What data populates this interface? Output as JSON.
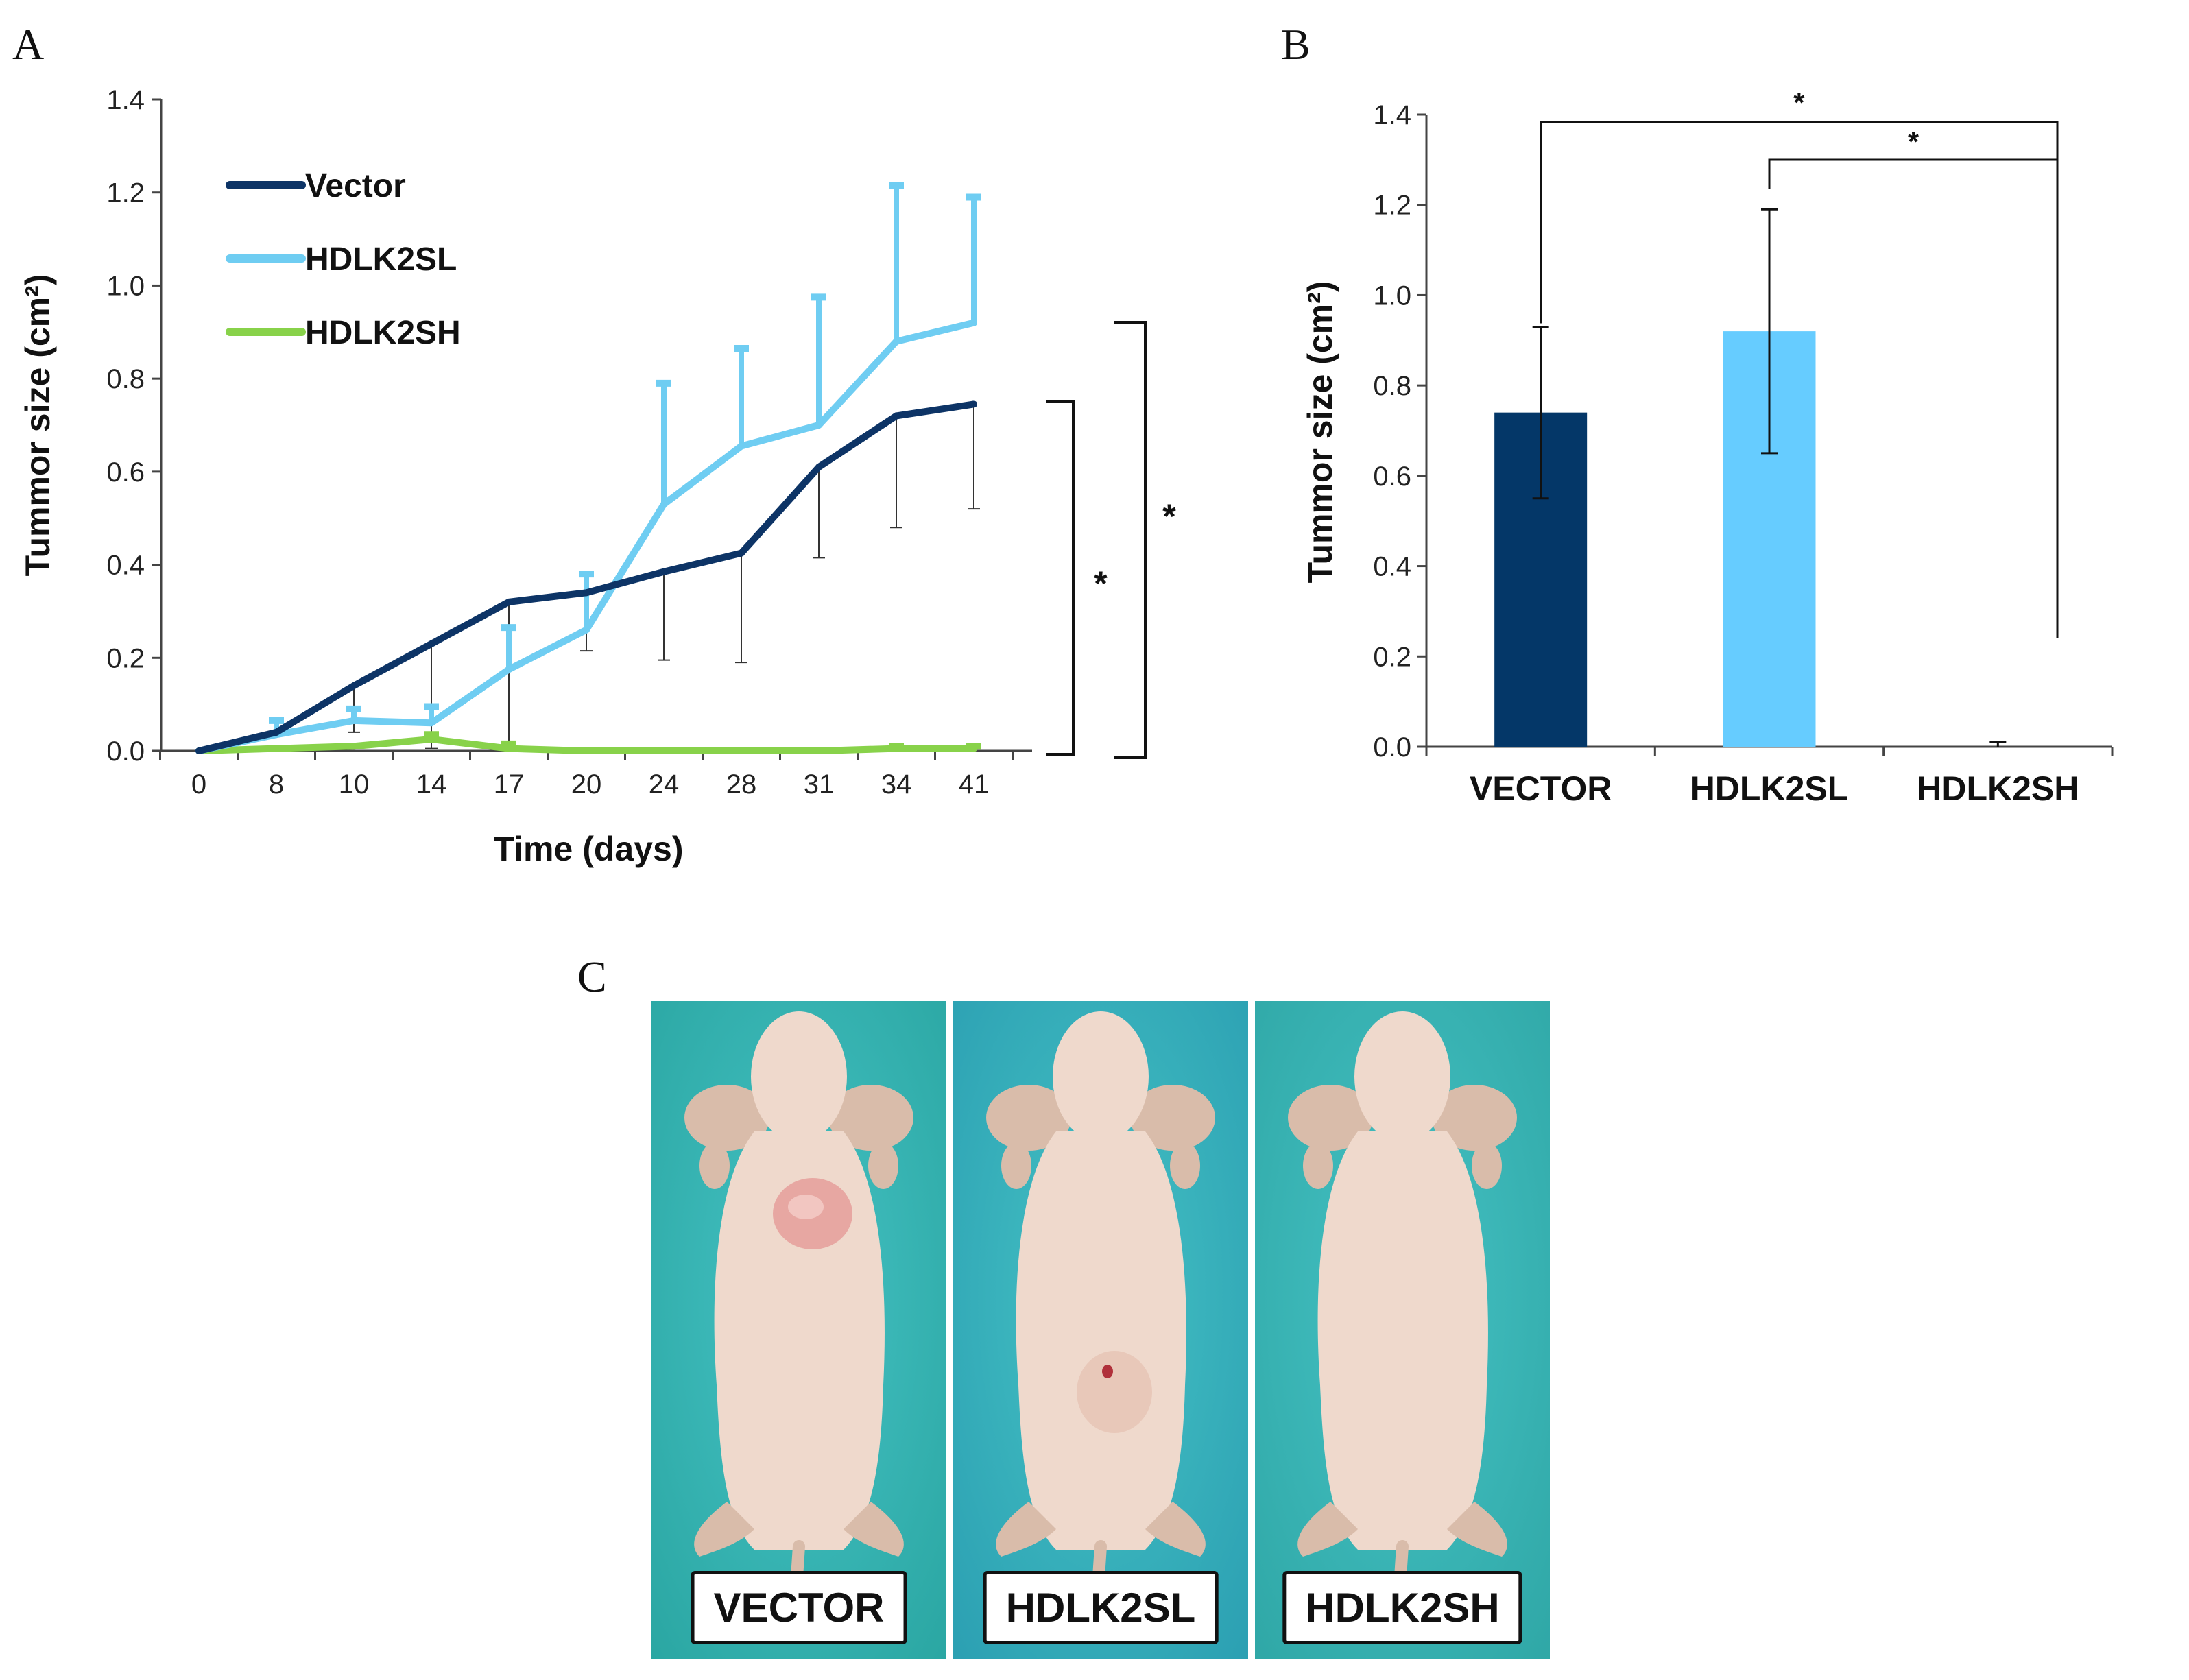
{
  "figure": {
    "panel_labels": {
      "a": "A",
      "b": "B",
      "c": "C"
    }
  },
  "chart_data": [
    {
      "type": "line",
      "panel": "A",
      "title": "",
      "xlabel": "Time (days)",
      "ylabel": "Tummor size (cm²)",
      "x": [
        "0",
        "8",
        "10",
        "14",
        "17",
        "20",
        "24",
        "28",
        "31",
        "34",
        "41"
      ],
      "ylim": [
        0,
        1.4
      ],
      "yticks": [
        "0.0",
        "0.2",
        "0.4",
        "0.6",
        "0.8",
        "1.0",
        "1.2",
        "1.4"
      ],
      "legend_position": "top-left",
      "series": [
        {
          "name": "Vector",
          "color": "#0d3466",
          "values": [
            0.0,
            0.04,
            0.14,
            0.23,
            0.32,
            0.34,
            0.385,
            0.425,
            0.61,
            0.72,
            0.745
          ],
          "err_low": [
            0.0,
            0.0,
            0.1,
            0.225,
            0.32,
            0.125,
            0.19,
            0.235,
            0.195,
            0.24,
            0.225
          ]
        },
        {
          "name": "HDLK2SL",
          "color": "#6fcdf2",
          "values": [
            0.0,
            0.035,
            0.065,
            0.06,
            0.175,
            0.26,
            0.53,
            0.655,
            0.7,
            0.88,
            0.92
          ],
          "err_high": [
            0.0,
            0.03,
            0.025,
            0.035,
            0.09,
            0.12,
            0.26,
            0.21,
            0.275,
            0.335,
            0.27
          ]
        },
        {
          "name": "HDLK2SH",
          "color": "#88d24a",
          "values": [
            0.0,
            0.005,
            0.01,
            0.025,
            0.005,
            0.0,
            0.0,
            0.0,
            0.0,
            0.005,
            0.005
          ],
          "err_high": [
            0.0,
            0.0,
            0.0,
            0.01,
            0.01,
            0.0,
            0.0,
            0.0,
            0.0,
            0.005,
            0.005
          ]
        }
      ],
      "significance": [
        {
          "label": "*",
          "from": "Vector",
          "to": "HDLK2SH"
        },
        {
          "label": "*",
          "from": "HDLK2SL",
          "to": "HDLK2SH"
        }
      ]
    },
    {
      "type": "bar",
      "panel": "B",
      "title": "",
      "xlabel": "",
      "ylabel": "Tummor size (cm²)",
      "categories": [
        "VECTOR",
        "HDLK2SL",
        "HDLK2SH"
      ],
      "values": [
        0.74,
        0.92,
        0.0
      ],
      "errors": [
        0.19,
        0.27,
        0.01
      ],
      "colors": [
        "#043768",
        "#66ccff",
        "#88d24a"
      ],
      "ylim": [
        0,
        1.4
      ],
      "yticks": [
        "0.0",
        "0.2",
        "0.4",
        "0.6",
        "0.8",
        "1.0",
        "1.2",
        "1.4"
      ],
      "significance": [
        {
          "label": "*",
          "from": "VECTOR",
          "to": "HDLK2SH"
        },
        {
          "label": "*",
          "from": "HDLK2SL",
          "to": "HDLK2SH"
        }
      ]
    }
  ],
  "photos": [
    {
      "label": "VECTOR",
      "bg": "#2aa6a2",
      "tumor": "upper"
    },
    {
      "label": "HDLK2SL",
      "bg": "#2b9fb2",
      "tumor": "lower"
    },
    {
      "label": "HDLK2SH",
      "bg": "#2fa7a6",
      "tumor": "none"
    }
  ]
}
